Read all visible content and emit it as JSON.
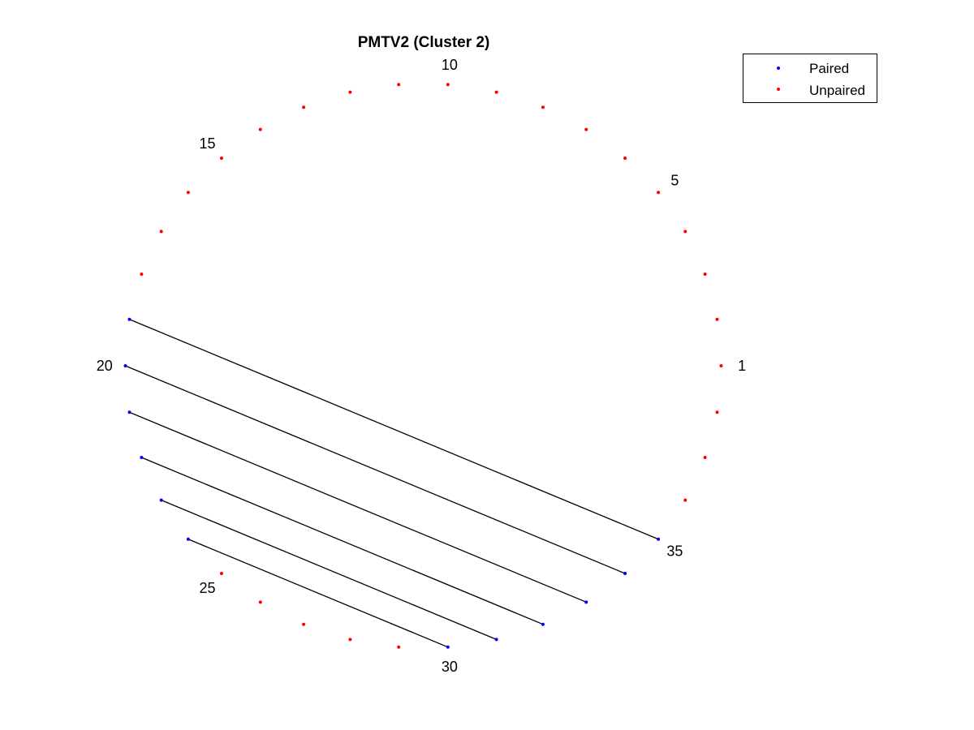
{
  "chart_data": {
    "type": "scatter",
    "subtype": "circular-arc-diagram",
    "title": "PMTV2 (Cluster 2)",
    "n_positions": 38,
    "index_labels": [
      "1",
      "5",
      "10",
      "15",
      "20",
      "25",
      "30",
      "35"
    ],
    "label_positions": [
      1,
      5,
      10,
      15,
      20,
      25,
      30,
      35
    ],
    "pairs": [
      [
        19,
        35
      ],
      [
        20,
        34
      ],
      [
        21,
        33
      ],
      [
        22,
        32
      ],
      [
        23,
        31
      ],
      [
        24,
        30
      ]
    ],
    "series": [
      {
        "name": "Paired",
        "color": "#0000ff",
        "positions": [
          19,
          20,
          21,
          22,
          23,
          24,
          30,
          31,
          32,
          33,
          34,
          35
        ]
      },
      {
        "name": "Unpaired",
        "color": "#ff0000",
        "positions": [
          1,
          2,
          3,
          4,
          5,
          6,
          7,
          8,
          9,
          10,
          11,
          12,
          13,
          14,
          15,
          16,
          17,
          18,
          25,
          26,
          27,
          28,
          29,
          36,
          37,
          38
        ]
      }
    ],
    "link_color": "#000000",
    "legend": {
      "placement": "top-right",
      "entries": [
        "Paired",
        "Unpaired"
      ]
    },
    "grid": false,
    "axes_visible": false
  }
}
